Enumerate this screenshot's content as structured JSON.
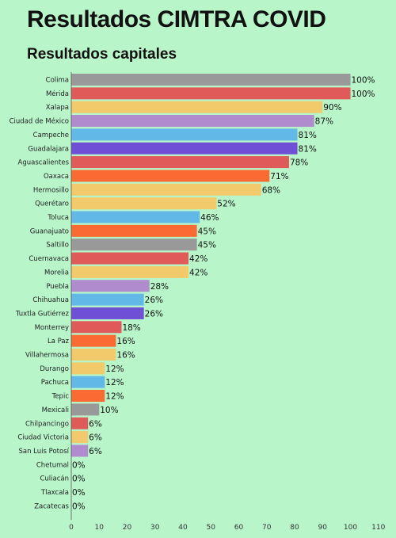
{
  "title": "Resultados CIMTRA COVID",
  "subtitle": "Resultados capitales",
  "chart_data": {
    "type": "bar",
    "orientation": "horizontal",
    "categories": [
      "Colima",
      "Mérida",
      "Xalapa",
      "Ciudad de México",
      "Campeche",
      "Guadalajara",
      "Aguascalientes",
      "Oaxaca",
      "Hermosillo",
      "Querétaro",
      "Toluca",
      "Guanajuato",
      "Saltillo",
      "Cuernavaca",
      "Morelia",
      "Puebla",
      "Chihuahua",
      "Tuxtla Gutiérrez",
      "Monterrey",
      "La Paz",
      "Villahermosa",
      "Durango",
      "Pachuca",
      "Tepic",
      "Mexicali",
      "Chilpancingo",
      "Ciudad Victoria",
      "San Luis Potosí",
      "Chetumal",
      "Culiacán",
      "Tlaxcala",
      "Zacatecas"
    ],
    "values": [
      100,
      100,
      90,
      87,
      81,
      81,
      78,
      71,
      68,
      52,
      46,
      45,
      45,
      42,
      42,
      28,
      26,
      26,
      18,
      16,
      16,
      12,
      12,
      12,
      10,
      6,
      6,
      6,
      0,
      0,
      0,
      0
    ],
    "value_labels": [
      "100%",
      "100%",
      "90%",
      "87%",
      "81%",
      "81%",
      "78%",
      "71%",
      "68%",
      "52%",
      "46%",
      "45%",
      "45%",
      "42%",
      "42%",
      "28%",
      "26%",
      "26%",
      "18%",
      "16%",
      "16%",
      "12%",
      "12%",
      "12%",
      "10%",
      "6%",
      "6%",
      "6%",
      "0%",
      "0%",
      "0%",
      "0%"
    ],
    "colors": [
      "#999999",
      "#e05a5a",
      "#f2c96b",
      "#b08ccf",
      "#62b8e6",
      "#6f4fd6",
      "#e05a5a",
      "#fb6a33",
      "#f2c96b",
      "#f2c96b",
      "#62b8e6",
      "#fb6a33",
      "#999999",
      "#e05a5a",
      "#f2c96b",
      "#b08ccf",
      "#62b8e6",
      "#6f4fd6",
      "#e05a5a",
      "#fb6a33",
      "#f2c96b",
      "#f2c96b",
      "#62b8e6",
      "#fb6a33",
      "#999999",
      "#e05a5a",
      "#f2c96b",
      "#b08ccf",
      "#62b8e6",
      "#6f4fd6",
      "#e05a5a",
      "#fb6a33"
    ],
    "xlim": [
      0,
      110
    ],
    "xticks": [
      "0",
      "10",
      "20",
      "30",
      "40",
      "50",
      "60",
      "70",
      "80",
      "90",
      "100",
      "110"
    ],
    "grid": false,
    "legend": "none"
  }
}
